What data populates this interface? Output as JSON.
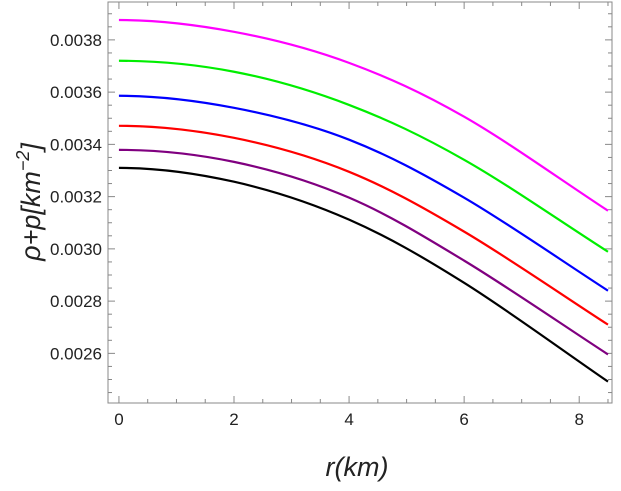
{
  "chart_data": {
    "type": "line",
    "title": "",
    "xlabel": "r(km)",
    "ylabel": "ρ+p[km⁻²]",
    "ylabel_parts": {
      "main": "ρ+p[km",
      "sup": "−2",
      "close": "]"
    },
    "xlim": [
      -0.19,
      8.57
    ],
    "ylim": [
      0.00241,
      0.003945
    ],
    "xticks": [
      0,
      2,
      4,
      6,
      8
    ],
    "xtick_labels": [
      "0",
      "2",
      "4",
      "6",
      "8"
    ],
    "yticks": [
      0.0026,
      0.0028,
      0.003,
      0.0032,
      0.0034,
      0.0036,
      0.0038
    ],
    "ytick_labels": [
      "0.0026",
      "0.0028",
      "0.0030",
      "0.0032",
      "0.0034",
      "0.0036",
      "0.0038"
    ],
    "grid": false,
    "legend": "none",
    "x": [
      0,
      2,
      4,
      6,
      8.5
    ],
    "series": [
      {
        "color": "#ff00ff",
        "values": [
          0.003876,
          0.003831,
          0.003712,
          0.003506,
          0.003146
        ]
      },
      {
        "color": "#00ee00",
        "values": [
          0.00372,
          0.003678,
          0.003551,
          0.003341,
          0.002989
        ]
      },
      {
        "color": "#0000ff",
        "values": [
          0.003586,
          0.00354,
          0.003418,
          0.003196,
          0.00284
        ]
      },
      {
        "color": "#ff0000",
        "values": [
          0.003471,
          0.003425,
          0.003295,
          0.003066,
          0.00271
        ]
      },
      {
        "color": "#800080",
        "values": [
          0.003379,
          0.003333,
          0.003196,
          0.002955,
          0.002596
        ]
      },
      {
        "color": "#000000",
        "values": [
          0.00331,
          0.003257,
          0.003112,
          0.00287,
          0.002492
        ]
      }
    ]
  }
}
